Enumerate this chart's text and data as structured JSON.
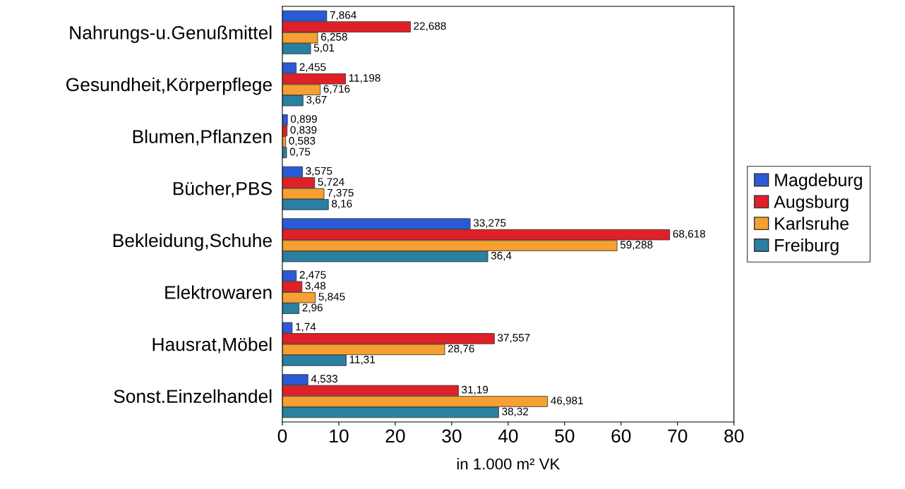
{
  "chart_data": {
    "type": "bar",
    "orientation": "horizontal",
    "xlabel": "in 1.000 m² VK",
    "categories": [
      "Nahrungs-u.Genußmittel",
      "Gesundheit,Körperpflege",
      "Blumen,Pflanzen",
      "Bücher,PBS",
      "Bekleidung,Schuhe",
      "Elektrowaren",
      "Hausrat,Möbel",
      "Sonst.Einzelhandel"
    ],
    "series": [
      {
        "name": "Magdeburg",
        "color": "#2a5ad6",
        "values": [
          7.864,
          2.455,
          0.899,
          3.575,
          33.275,
          2.475,
          1.74,
          4.533
        ],
        "value_labels": [
          "7,864",
          "2,455",
          "0,899",
          "3,575",
          "33,275",
          "2,475",
          "1,74",
          "4,533"
        ]
      },
      {
        "name": "Augsburg",
        "color": "#e02028",
        "values": [
          22.688,
          11.198,
          0.839,
          5.724,
          68.618,
          3.48,
          37.557,
          31.19
        ],
        "value_labels": [
          "22,688",
          "11,198",
          "0,839",
          "5,724",
          "68,618",
          "3,48",
          "37,557",
          "31,19"
        ]
      },
      {
        "name": "Karlsruhe",
        "color": "#f5a030",
        "values": [
          6.258,
          6.716,
          0.583,
          7.375,
          59.288,
          5.845,
          28.76,
          46.981
        ],
        "value_labels": [
          "6,258",
          "6,716",
          "0,583",
          "7,375",
          "59,288",
          "5,845",
          "28,76",
          "46,981"
        ]
      },
      {
        "name": "Freiburg",
        "color": "#2a80a0",
        "values": [
          5.01,
          3.67,
          0.75,
          8.16,
          36.4,
          2.96,
          11.31,
          38.32
        ],
        "value_labels": [
          "5,01",
          "3,67",
          "0,75",
          "8,16",
          "36,4",
          "2,96",
          "11,31",
          "38,32"
        ]
      }
    ],
    "xlim": [
      0,
      80
    ],
    "xticks": [
      0,
      10,
      20,
      30,
      40,
      50,
      60,
      70,
      80
    ],
    "grid": false,
    "legend": "right"
  }
}
